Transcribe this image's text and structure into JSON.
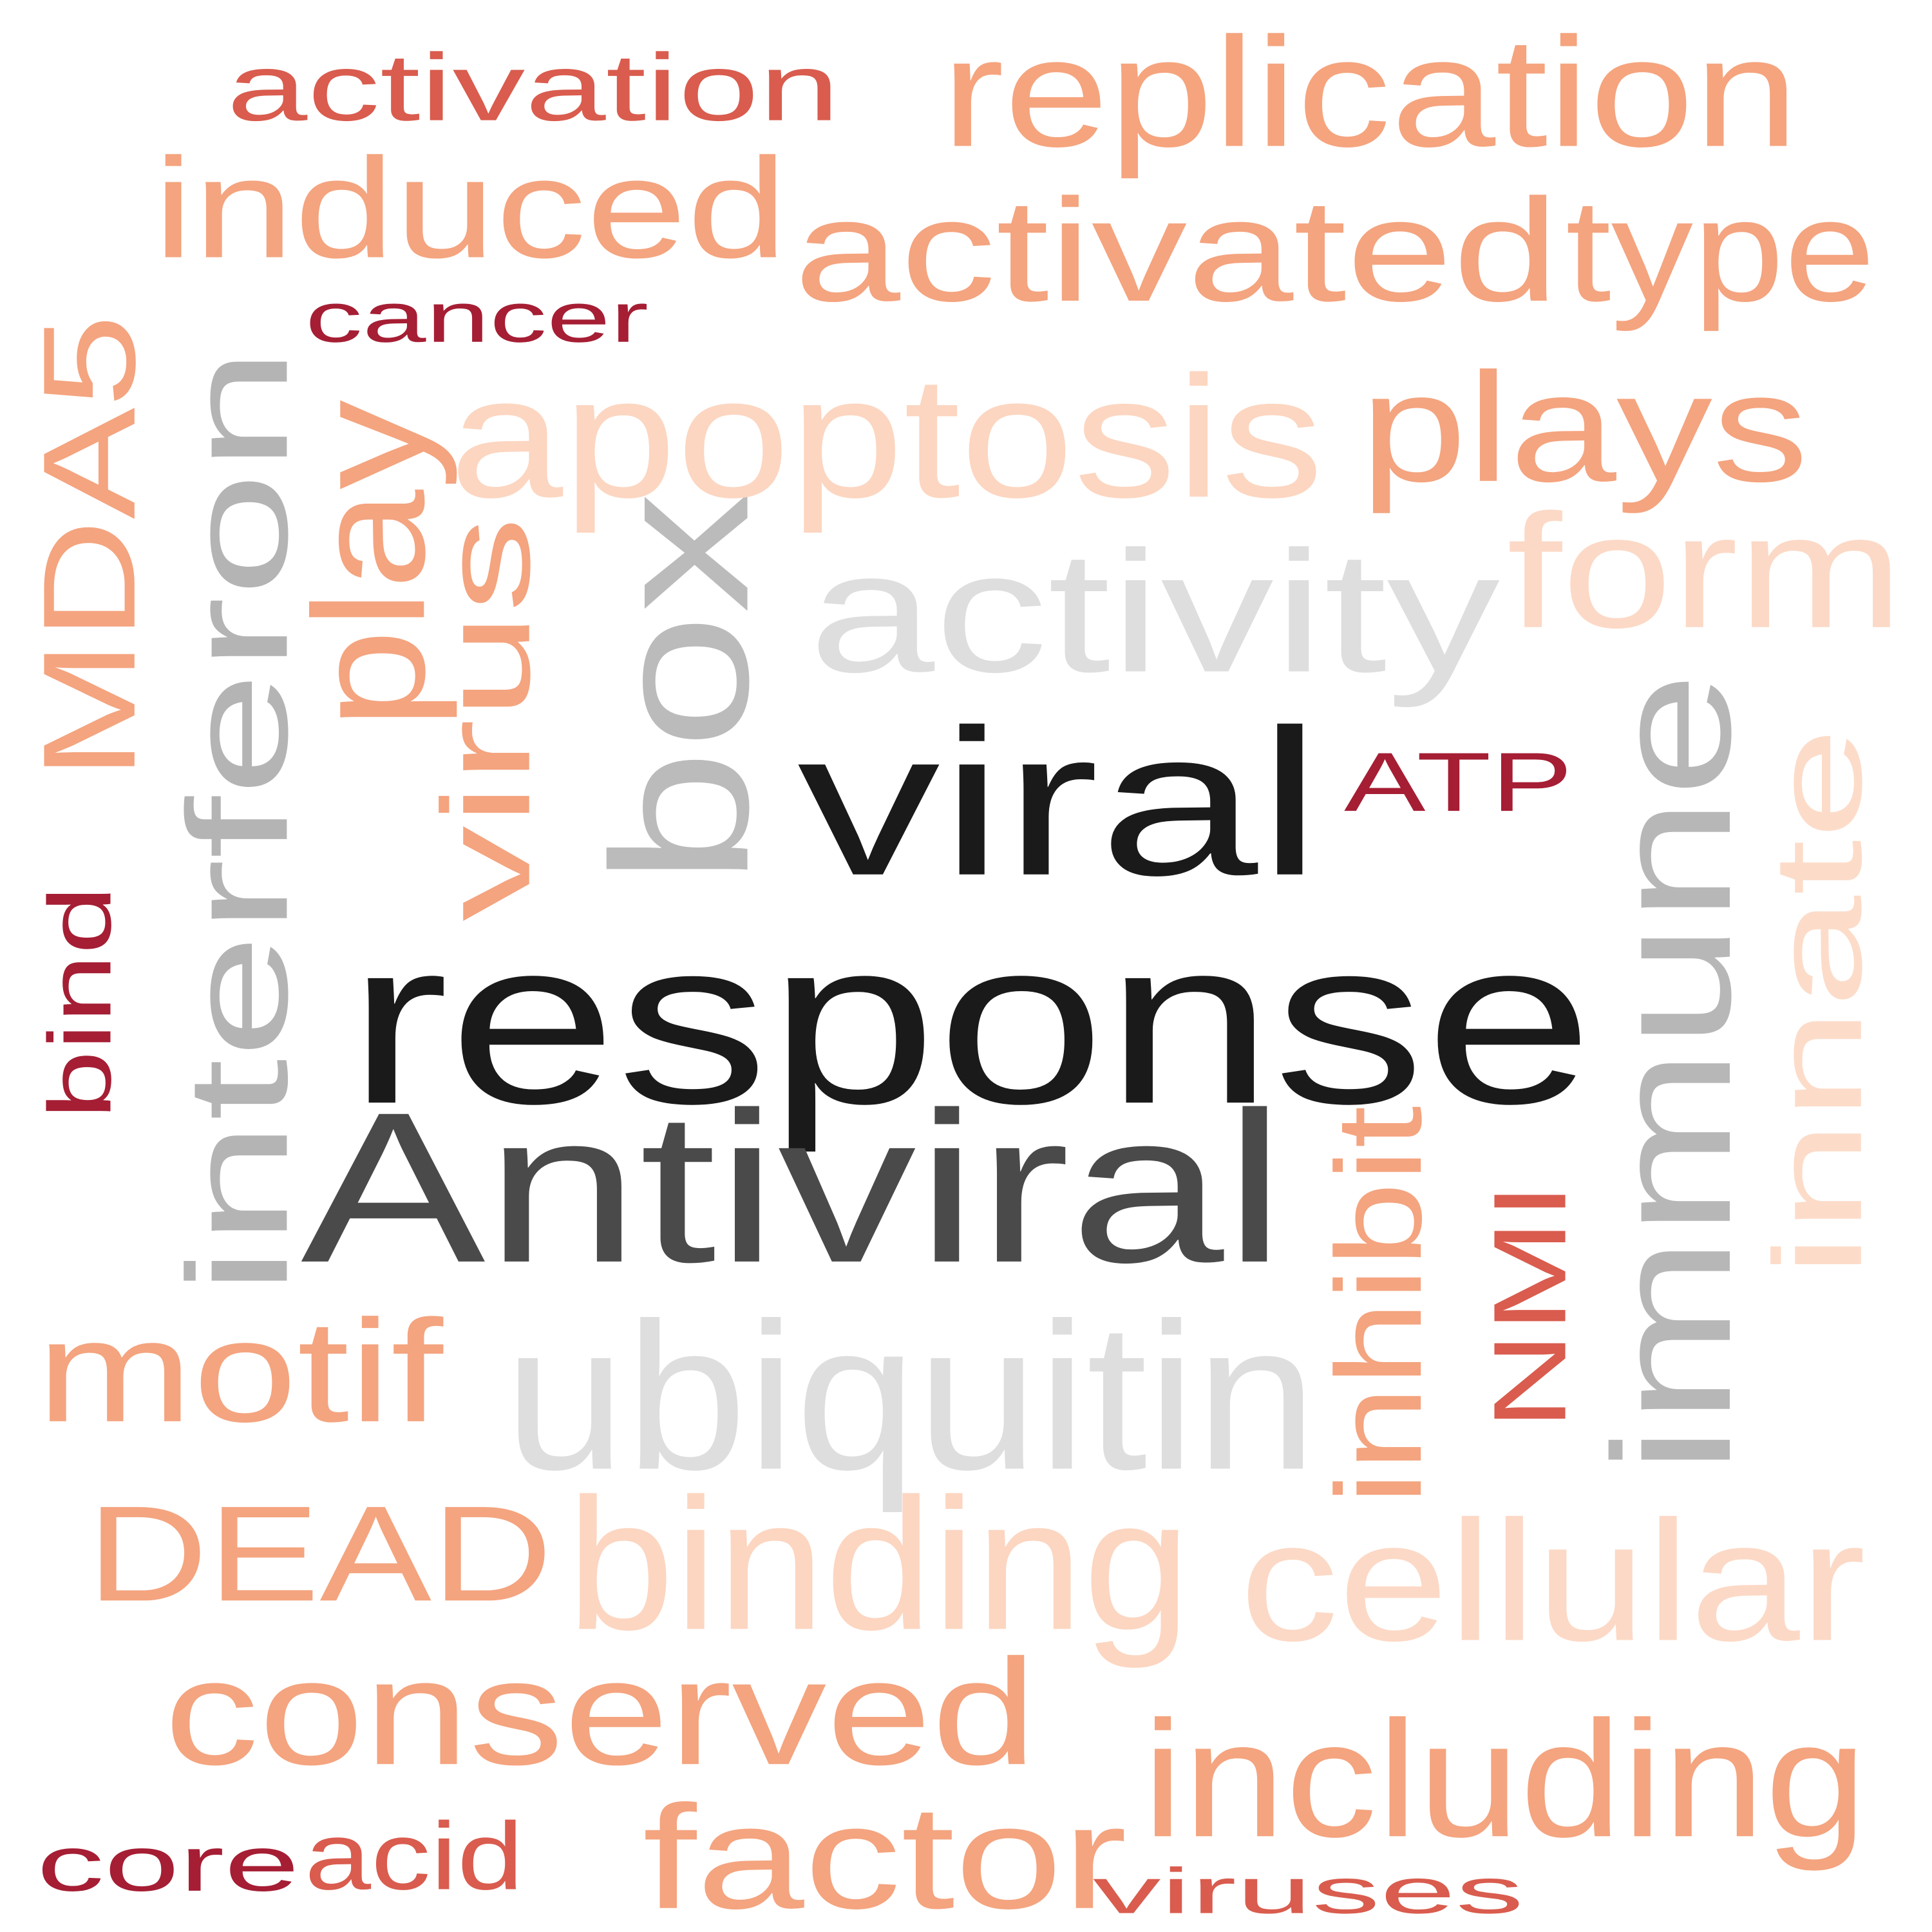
{
  "words": [
    {
      "text": "response",
      "color": "#1a1a1a"
    },
    {
      "text": "viral",
      "color": "#1a1a1a"
    },
    {
      "text": "Antiviral",
      "color": "#4a4a4a"
    },
    {
      "text": "interferon",
      "color": "#b4b4b4"
    },
    {
      "text": "box",
      "color": "#bbbbbb"
    },
    {
      "text": "immune",
      "color": "#b7b7b7"
    },
    {
      "text": "activity",
      "color": "#dedede"
    },
    {
      "text": "ubiquitin",
      "color": "#dedede"
    },
    {
      "text": "replication",
      "color": "#f5a47e"
    },
    {
      "text": "induced",
      "color": "#f4a47f"
    },
    {
      "text": "activated",
      "color": "#f4a47f"
    },
    {
      "text": "type",
      "color": "#f4a47f"
    },
    {
      "text": "apoptosis",
      "color": "#fcd6c1"
    },
    {
      "text": "plays",
      "color": "#f4a47f"
    },
    {
      "text": "form",
      "color": "#fcd9c6"
    },
    {
      "text": "innate",
      "color": "#fcdcc9"
    },
    {
      "text": "MDA5",
      "color": "#f4a47f"
    },
    {
      "text": "play",
      "color": "#f4a47f"
    },
    {
      "text": "virus",
      "color": "#f4a47f"
    },
    {
      "text": "activation",
      "color": "#d95c4e"
    },
    {
      "text": "cancer",
      "color": "#a51e34"
    },
    {
      "text": "bind",
      "color": "#a51e34"
    },
    {
      "text": "ATP",
      "color": "#a51e34"
    },
    {
      "text": "inhibit",
      "color": "#f4a47f"
    },
    {
      "text": "NMI",
      "color": "#d95c4e"
    },
    {
      "text": "motif",
      "color": "#f4a47f"
    },
    {
      "text": "DEAD",
      "color": "#f4a47f"
    },
    {
      "text": "binding",
      "color": "#fcd6c1"
    },
    {
      "text": "cellular",
      "color": "#fcd9c6"
    },
    {
      "text": "conserved",
      "color": "#f4a47f"
    },
    {
      "text": "including",
      "color": "#f4a47f"
    },
    {
      "text": "core",
      "color": "#a51e34"
    },
    {
      "text": "acid",
      "color": "#d95c4e"
    },
    {
      "text": "factor",
      "color": "#f4a47f"
    },
    {
      "text": "viruses",
      "color": "#d95c4e"
    }
  ]
}
